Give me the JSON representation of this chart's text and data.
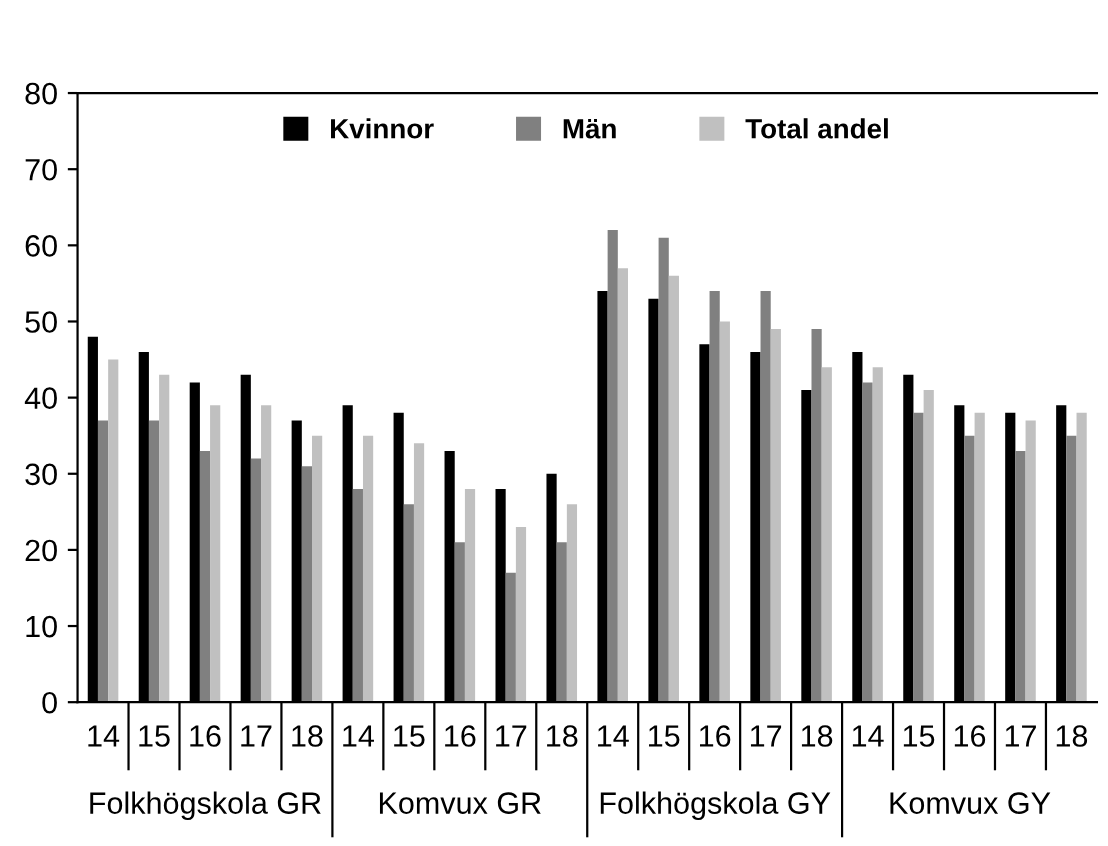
{
  "chart_data": {
    "type": "bar",
    "categories": [
      "14",
      "15",
      "16",
      "17",
      "18",
      "14",
      "15",
      "16",
      "17",
      "18",
      "14",
      "15",
      "16",
      "17",
      "18",
      "14",
      "15",
      "16",
      "17",
      "18"
    ],
    "series": [
      {
        "name": "Kvinnor",
        "color": "#000000",
        "values": [
          48,
          46,
          42,
          43,
          37,
          39,
          38,
          33,
          28,
          30,
          54,
          53,
          47,
          46,
          41,
          46,
          43,
          39,
          38,
          39
        ]
      },
      {
        "name": "Män",
        "color": "#808080",
        "values": [
          37,
          37,
          33,
          32,
          31,
          28,
          26,
          21,
          17,
          21,
          62,
          61,
          54,
          54,
          49,
          42,
          38,
          35,
          33,
          35
        ]
      },
      {
        "name": "Total andel",
        "color": "#c0c0c0",
        "values": [
          45,
          43,
          39,
          39,
          35,
          35,
          34,
          28,
          23,
          26,
          57,
          56,
          50,
          49,
          44,
          44,
          41,
          38,
          37,
          38
        ]
      }
    ],
    "annotations": [
      "Folkhögskola GR",
      "Komvux GR",
      "Folkhögskola GY",
      "Komvux GY"
    ],
    "ylim": [
      0,
      80
    ],
    "yticks": [
      0,
      10,
      20,
      30,
      40,
      50,
      60,
      70,
      80
    ],
    "grid": false,
    "legend": "top"
  }
}
